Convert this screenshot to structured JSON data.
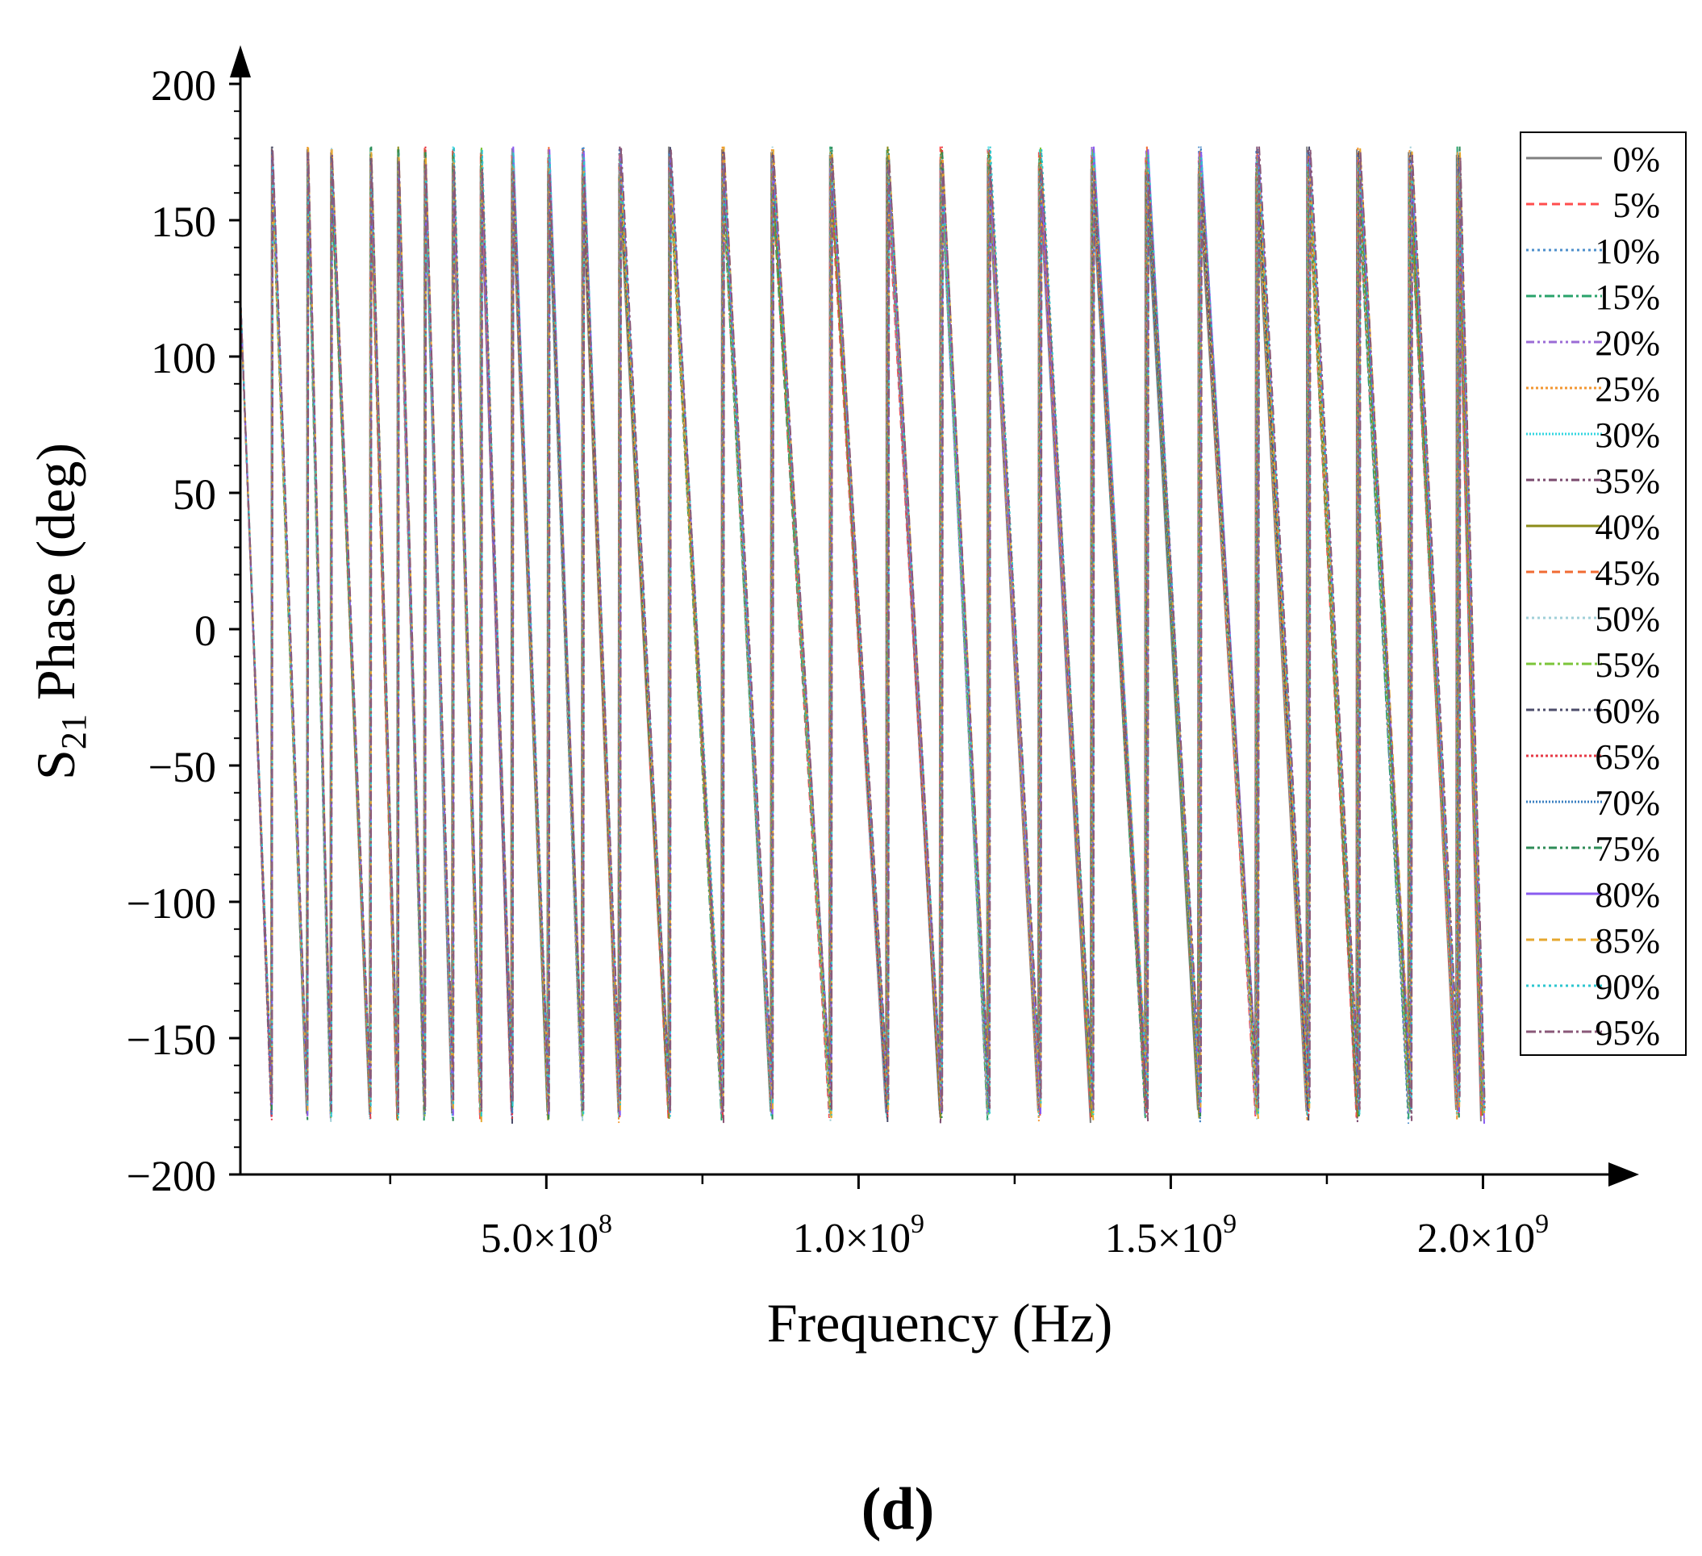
{
  "figure_label": "(d)",
  "chart_data": {
    "type": "line",
    "title": "",
    "xlabel": "Frequency (Hz)",
    "ylabel": {
      "base": "S",
      "sub": "21",
      "rest": " Phase (deg)"
    },
    "xlim": [
      10000000,
      2250000000
    ],
    "ylim": [
      -200,
      200
    ],
    "x_ticks": [
      {
        "value": 500000000,
        "mantissa": "5.0×10",
        "exp": "8"
      },
      {
        "value": 1000000000,
        "mantissa": "1.0×10",
        "exp": "9"
      },
      {
        "value": 1500000000,
        "mantissa": "1.5×10",
        "exp": "9"
      },
      {
        "value": 2000000000,
        "mantissa": "2.0×10",
        "exp": "9"
      }
    ],
    "x_minor_ticks": [
      250000000,
      750000000,
      1250000000,
      1750000000
    ],
    "y_ticks": [
      {
        "value": 200,
        "label": "200"
      },
      {
        "value": 150,
        "label": "150"
      },
      {
        "value": 100,
        "label": "100"
      },
      {
        "value": 50,
        "label": "50"
      },
      {
        "value": 0,
        "label": "0"
      },
      {
        "value": -50,
        "label": "−50"
      },
      {
        "value": -100,
        "label": "−100"
      },
      {
        "value": -150,
        "label": "−150"
      },
      {
        "value": -200,
        "label": "−200"
      }
    ],
    "wrap_frequencies": [
      10000000,
      60000000,
      117000000,
      155000000,
      218000000,
      262000000,
      305000000,
      350000000,
      395000000,
      445000000,
      503000000,
      558000000,
      617000000,
      697000000,
      782000000,
      861000000,
      955000000,
      1046000000,
      1132000000,
      1208000000,
      1290000000,
      1374000000,
      1461000000,
      1546000000,
      1638000000,
      1720000000,
      1800000000,
      1883000000,
      1960000000,
      2000000000
    ],
    "legend_placement": "right",
    "grid": false,
    "series": [
      {
        "name": "0%",
        "color": "#808080",
        "dash": ""
      },
      {
        "name": "5%",
        "color": "#ff4d4d",
        "dash": "10,6"
      },
      {
        "name": "10%",
        "color": "#4d8fcc",
        "dash": "3,4"
      },
      {
        "name": "15%",
        "color": "#2aa36b",
        "dash": "12,4,3,4"
      },
      {
        "name": "20%",
        "color": "#9b6bd6",
        "dash": "10,4,3,4,3,4"
      },
      {
        "name": "25%",
        "color": "#f29630",
        "dash": "3,3"
      },
      {
        "name": "30%",
        "color": "#33d6e0",
        "dash": "2,2"
      },
      {
        "name": "35%",
        "color": "#7a4a6e",
        "dash": "10,4,3,4,3,4"
      },
      {
        "name": "40%",
        "color": "#8c8c1a",
        "dash": ""
      },
      {
        "name": "45%",
        "color": "#f06b33",
        "dash": "10,6"
      },
      {
        "name": "50%",
        "color": "#a0d0d8",
        "dash": "3,4"
      },
      {
        "name": "55%",
        "color": "#7cc53a",
        "dash": "12,4,3,4"
      },
      {
        "name": "60%",
        "color": "#4d4d6b",
        "dash": "10,4,3,4,3,4"
      },
      {
        "name": "65%",
        "color": "#e63946",
        "dash": "3,3"
      },
      {
        "name": "70%",
        "color": "#3a7fc1",
        "dash": "2,2"
      },
      {
        "name": "75%",
        "color": "#2e8b57",
        "dash": "10,4,3,4,3,4"
      },
      {
        "name": "80%",
        "color": "#8a5cf0",
        "dash": ""
      },
      {
        "name": "85%",
        "color": "#e6a72e",
        "dash": "10,6"
      },
      {
        "name": "90%",
        "color": "#2cc6cf",
        "dash": "3,4"
      },
      {
        "name": "95%",
        "color": "#8a5878",
        "dash": "12,4,3,4"
      }
    ]
  }
}
